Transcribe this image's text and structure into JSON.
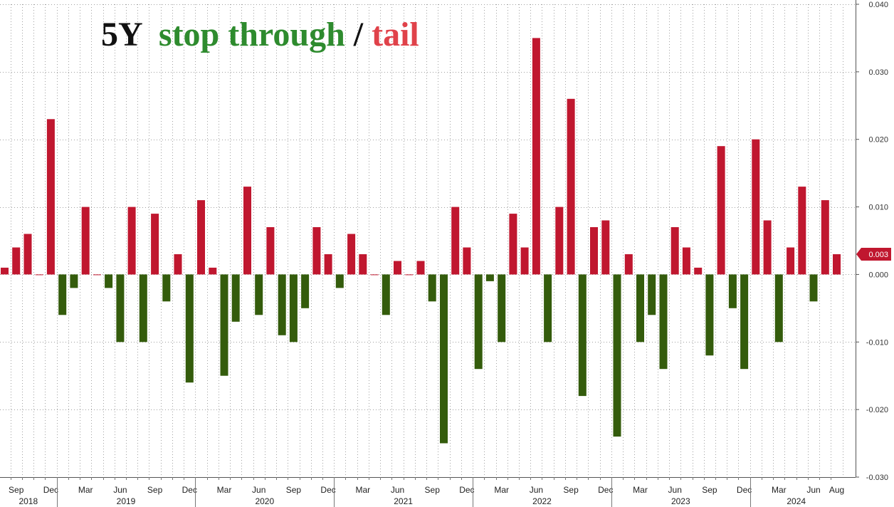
{
  "chart_data": {
    "type": "bar",
    "title": {
      "prefix": "5Y",
      "part1": "stop through",
      "sep": "/",
      "part2": "tail"
    },
    "colors": {
      "positive": "#c0172f",
      "negative": "#345c0c",
      "title_prefix": "#111111",
      "title_part1": "#2e8b2e",
      "title_sep": "#111111",
      "title_part2": "#e0424a",
      "grid": "#a0a0a0",
      "last_label_bg": "#c0172f"
    },
    "x": [
      "2018-08",
      "2018-09",
      "2018-10",
      "2018-11",
      "2018-12",
      "2019-01",
      "2019-02",
      "2019-03",
      "2019-04",
      "2019-05",
      "2019-06",
      "2019-07",
      "2019-08",
      "2019-09",
      "2019-10",
      "2019-11",
      "2019-12",
      "2020-01",
      "2020-02",
      "2020-03",
      "2020-04",
      "2020-05",
      "2020-06",
      "2020-07",
      "2020-08",
      "2020-09",
      "2020-10",
      "2020-11",
      "2020-12",
      "2021-01",
      "2021-02",
      "2021-03",
      "2021-04",
      "2021-05",
      "2021-06",
      "2021-07",
      "2021-08",
      "2021-09",
      "2021-10",
      "2021-11",
      "2021-12",
      "2022-01",
      "2022-02",
      "2022-03",
      "2022-04",
      "2022-05",
      "2022-06",
      "2022-07",
      "2022-08",
      "2022-09",
      "2022-10",
      "2022-11",
      "2022-12",
      "2023-01",
      "2023-02",
      "2023-03",
      "2023-04",
      "2023-05",
      "2023-06",
      "2023-07",
      "2023-08",
      "2023-09",
      "2023-10",
      "2023-11",
      "2023-12",
      "2024-01",
      "2024-02",
      "2024-03",
      "2024-04",
      "2024-05",
      "2024-06",
      "2024-07",
      "2024-08"
    ],
    "values": [
      0.001,
      0.004,
      0.006,
      0.0,
      0.023,
      -0.006,
      -0.002,
      0.01,
      0.0,
      -0.002,
      -0.01,
      0.01,
      -0.01,
      0.009,
      -0.004,
      0.003,
      -0.016,
      0.011,
      0.001,
      -0.015,
      -0.007,
      0.013,
      -0.006,
      0.007,
      -0.009,
      -0.01,
      -0.005,
      0.007,
      0.003,
      -0.002,
      0.006,
      0.003,
      0.0,
      -0.006,
      0.002,
      0.0,
      0.002,
      -0.004,
      -0.025,
      0.01,
      0.004,
      -0.014,
      -0.001,
      -0.01,
      0.009,
      0.004,
      0.035,
      -0.01,
      0.01,
      0.026,
      -0.018,
      0.007,
      0.008,
      -0.024,
      0.003,
      -0.01,
      -0.006,
      -0.014,
      0.007,
      0.004,
      0.001,
      -0.012,
      0.019,
      -0.005,
      -0.014,
      0.02,
      0.008,
      -0.01,
      0.004,
      0.013,
      -0.004,
      0.011,
      0.003
    ],
    "ylim": [
      -0.03,
      0.04
    ],
    "y_ticks": [
      "0.040",
      "0.030",
      "0.020",
      "0.010",
      "0.000",
      "-0.010",
      "-0.020",
      "-0.030"
    ],
    "y_tick_values": [
      0.04,
      0.03,
      0.02,
      0.01,
      0.0,
      -0.01,
      -0.02,
      -0.03
    ],
    "month_labels": [
      {
        "month": "2018-09",
        "label": "Sep"
      },
      {
        "month": "2018-12",
        "label": "Dec"
      },
      {
        "month": "2019-03",
        "label": "Mar"
      },
      {
        "month": "2019-06",
        "label": "Jun"
      },
      {
        "month": "2019-09",
        "label": "Sep"
      },
      {
        "month": "2019-12",
        "label": "Dec"
      },
      {
        "month": "2020-03",
        "label": "Mar"
      },
      {
        "month": "2020-06",
        "label": "Jun"
      },
      {
        "month": "2020-09",
        "label": "Sep"
      },
      {
        "month": "2020-12",
        "label": "Dec"
      },
      {
        "month": "2021-03",
        "label": "Mar"
      },
      {
        "month": "2021-06",
        "label": "Jun"
      },
      {
        "month": "2021-09",
        "label": "Sep"
      },
      {
        "month": "2021-12",
        "label": "Dec"
      },
      {
        "month": "2022-03",
        "label": "Mar"
      },
      {
        "month": "2022-06",
        "label": "Jun"
      },
      {
        "month": "2022-09",
        "label": "Sep"
      },
      {
        "month": "2022-12",
        "label": "Dec"
      },
      {
        "month": "2023-03",
        "label": "Mar"
      },
      {
        "month": "2023-06",
        "label": "Jun"
      },
      {
        "month": "2023-09",
        "label": "Sep"
      },
      {
        "month": "2023-12",
        "label": "Dec"
      },
      {
        "month": "2024-03",
        "label": "Mar"
      },
      {
        "month": "2024-06",
        "label": "Jun"
      },
      {
        "month": "2024-08",
        "label": "Aug"
      }
    ],
    "years": [
      "2018",
      "2019",
      "2020",
      "2021",
      "2022",
      "2023",
      "2024"
    ],
    "last_value_label": "0.003",
    "grid": true,
    "y_axis_position": "right"
  }
}
